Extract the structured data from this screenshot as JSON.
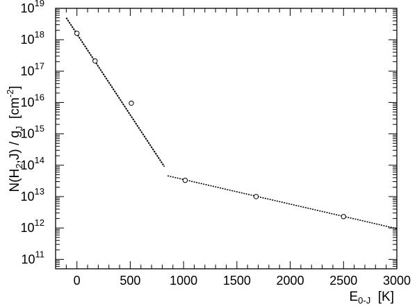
{
  "chart_data": {
    "type": "scatter",
    "x_scale": "linear",
    "y_scale": "log",
    "xlim": [
      -200,
      3000
    ],
    "ylim": [
      50000000000.0,
      1e+19
    ],
    "grid": false,
    "legend": "none",
    "xlabel": {
      "main": "E",
      "sub": "0-J",
      "unit": "[K]"
    },
    "ylabel": {
      "p1": "N(H",
      "s1": "2",
      "p2": ",J) / g",
      "s2": "J",
      "p3": "  [cm",
      "sup": "-2",
      "p4": "]"
    },
    "x_ticks": [
      {
        "value": 0,
        "label": "0"
      },
      {
        "value": 500,
        "label": "500"
      },
      {
        "value": 1000,
        "label": "1000"
      },
      {
        "value": 1500,
        "label": "1500"
      },
      {
        "value": 2000,
        "label": "2000"
      },
      {
        "value": 2500,
        "label": "2500"
      },
      {
        "value": 3000,
        "label": "3000"
      }
    ],
    "y_ticks": [
      {
        "exp": 11,
        "base": "10",
        "power": "11"
      },
      {
        "exp": 12,
        "base": "10",
        "power": "12"
      },
      {
        "exp": 13,
        "base": "10",
        "power": "13"
      },
      {
        "exp": 14,
        "base": "10",
        "power": "14"
      },
      {
        "exp": 15,
        "base": "10",
        "power": "15"
      },
      {
        "exp": 16,
        "base": "10",
        "power": "16"
      },
      {
        "exp": 17,
        "base": "10",
        "power": "17"
      },
      {
        "exp": 18,
        "base": "10",
        "power": "18"
      },
      {
        "exp": 19,
        "base": "10",
        "power": "19"
      }
    ],
    "points": [
      {
        "x": 0,
        "y": 1.6e+18
      },
      {
        "x": 170,
        "y": 2.1e+17
      },
      {
        "x": 510,
        "y": 9500000000000000.0
      },
      {
        "x": 1015,
        "y": 33000000000000.0
      },
      {
        "x": 1680,
        "y": 10000000000000.0
      },
      {
        "x": 2500,
        "y": 2300000000000.0
      }
    ],
    "fit_lines": [
      {
        "x": [
          -100,
          820
        ],
        "y": [
          5e+18,
          90000000000000.0
        ]
      },
      {
        "x": [
          850,
          3000
        ],
        "y": [
          46000000000000.0,
          950000000000.0
        ]
      }
    ]
  }
}
